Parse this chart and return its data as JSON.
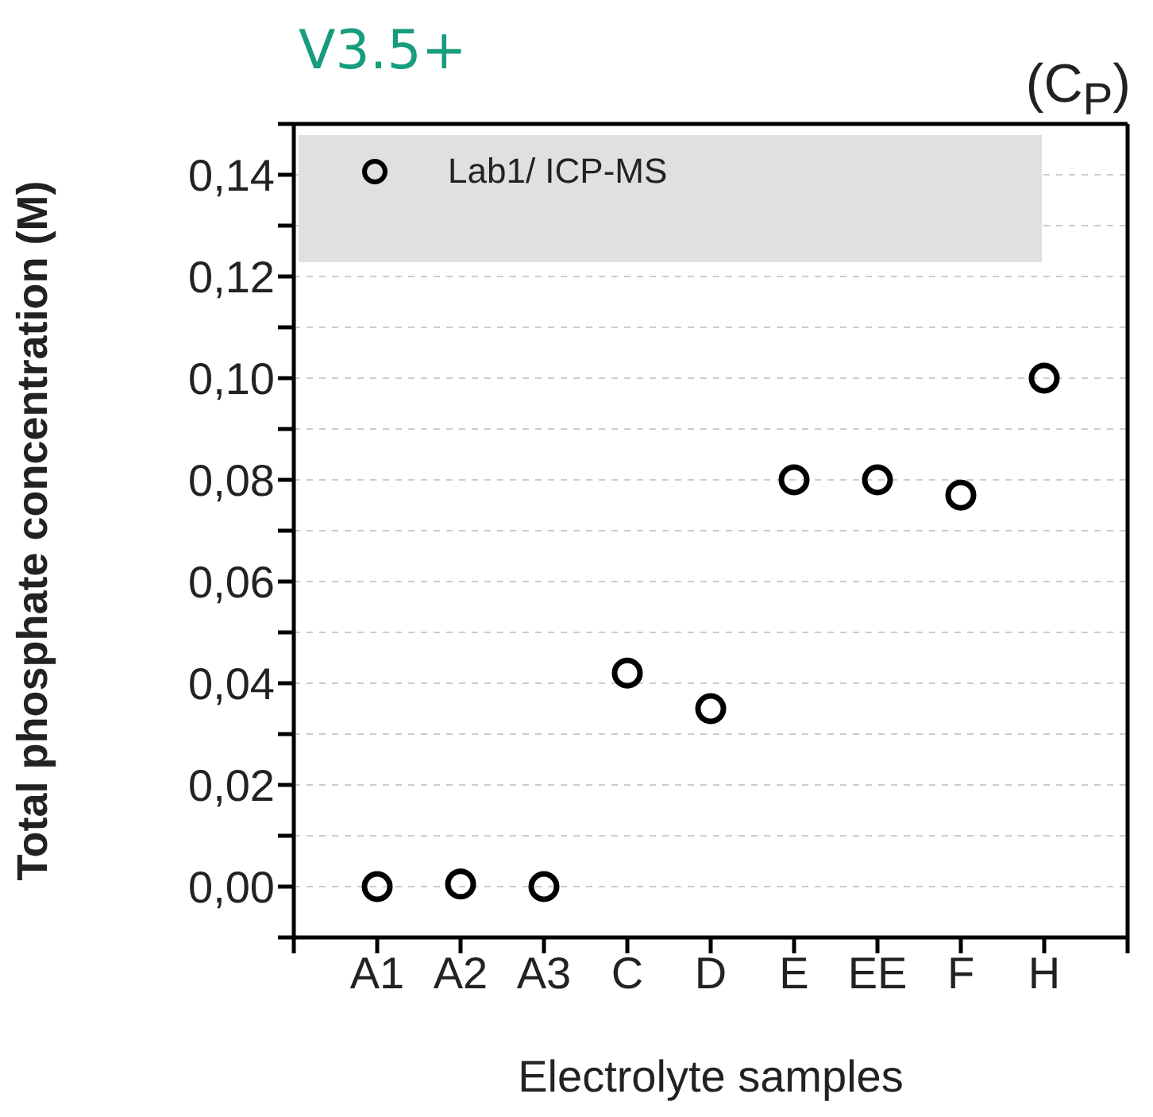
{
  "chart_data": {
    "type": "scatter",
    "title": "V3.5+",
    "annotations": [
      "(C$_{P}$)"
    ],
    "xlabel": "Electrolyte samples",
    "ylabel": "Total phosphate concentration (M)",
    "categories": [
      "A1",
      "A2",
      "A3",
      "C",
      "D",
      "E",
      "EE",
      "F",
      "H"
    ],
    "series": [
      {
        "name": "Lab1/ ICP-MS",
        "color": "#000000",
        "values": [
          0,
          0.0005,
          0,
          0.042,
          0.035,
          0.08,
          0.08,
          0.077,
          0.1
        ]
      }
    ],
    "ylim": [
      -0.01,
      0.15
    ],
    "yticks": [
      {
        "value": -0.01,
        "label": null
      },
      {
        "value": 0,
        "label": "0,00"
      },
      {
        "value": 0.01,
        "label": null
      },
      {
        "value": 0.02,
        "label": "0,02"
      },
      {
        "value": 0.03,
        "label": null
      },
      {
        "value": 0.04,
        "label": "0,04"
      },
      {
        "value": 0.05,
        "label": null
      },
      {
        "value": 0.06,
        "label": "0,06"
      },
      {
        "value": 0.07,
        "label": null
      },
      {
        "value": 0.08,
        "label": "0,08"
      },
      {
        "value": 0.09,
        "label": null
      },
      {
        "value": 0.1,
        "label": "0,10"
      },
      {
        "value": 0.11,
        "label": null
      },
      {
        "value": 0.12,
        "label": "0,12"
      },
      {
        "value": 0.13,
        "label": null
      },
      {
        "value": 0.14,
        "label": "0,14"
      },
      {
        "value": 0.15,
        "label": null
      }
    ],
    "grid": "y",
    "legend": "top left",
    "marker": "circle"
  }
}
